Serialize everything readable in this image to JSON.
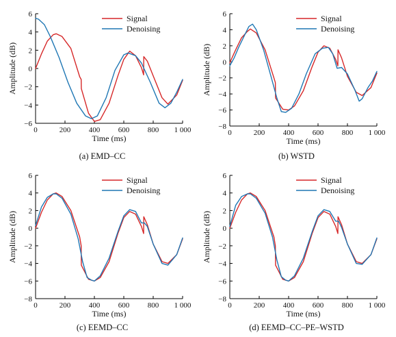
{
  "panel_order": [
    "a",
    "b",
    "c",
    "d"
  ],
  "chart_data": [
    {
      "id": "a",
      "type": "line",
      "caption": "(a) EMD–CC",
      "xlabel": "Time (ms)",
      "ylabel": "Amplitude (dB)",
      "xlim": [
        0,
        1000
      ],
      "ylim": [
        -6,
        6
      ],
      "xticks": [
        0,
        200,
        400,
        600,
        800,
        1000
      ],
      "xtick_labels": [
        "0",
        "200",
        "400",
        "600",
        "800",
        "1 000"
      ],
      "yticks": [
        -6,
        -4,
        -2,
        0,
        2,
        4,
        6
      ],
      "ytick_labels": [
        "−6",
        "−4",
        "−2",
        "0",
        "2",
        "4",
        "6"
      ],
      "grid": false,
      "legend_position": "top-right",
      "series": [
        {
          "name": "Signal",
          "color": "#d62728",
          "x": [
            0,
            40,
            80,
            120,
            140,
            180,
            240,
            300,
            310,
            311,
            360,
            400,
            440,
            500,
            560,
            600,
            640,
            680,
            720,
            735,
            736,
            760,
            800,
            860,
            900,
            960,
            1000
          ],
          "y": [
            0,
            1.6,
            3.0,
            3.7,
            3.8,
            3.5,
            2.2,
            -0.9,
            -1.2,
            -2.2,
            -4.9,
            -5.8,
            -5.6,
            -3.8,
            -0.8,
            1.0,
            1.9,
            1.4,
            0.1,
            -0.7,
            1.3,
            0.8,
            -0.8,
            -3.2,
            -3.9,
            -2.9,
            -1.3
          ]
        },
        {
          "name": "Denoising",
          "color": "#1f77b4",
          "x": [
            0,
            20,
            60,
            100,
            160,
            220,
            280,
            340,
            380,
            420,
            480,
            540,
            600,
            630,
            680,
            720,
            780,
            840,
            880,
            920,
            960,
            1000
          ],
          "y": [
            5.5,
            5.4,
            4.8,
            3.5,
            1.2,
            -1.5,
            -3.8,
            -5.2,
            -5.5,
            -5.2,
            -3.2,
            -0.2,
            1.5,
            1.7,
            1.4,
            0.6,
            -1.5,
            -3.8,
            -4.3,
            -3.8,
            -2.6,
            -1.2
          ]
        }
      ]
    },
    {
      "id": "b",
      "type": "line",
      "caption": "(b) WSTD",
      "xlabel": "Time (ms)",
      "ylabel": "Amplitude (dB)",
      "xlim": [
        0,
        1000
      ],
      "ylim": [
        -8,
        6
      ],
      "xticks": [
        0,
        200,
        400,
        600,
        800,
        1000
      ],
      "xtick_labels": [
        "0",
        "200",
        "400",
        "600",
        "800",
        "1 000"
      ],
      "yticks": [
        -8,
        -6,
        -4,
        -2,
        0,
        2,
        4,
        6
      ],
      "ytick_labels": [
        "−8",
        "−6",
        "−4",
        "−2",
        "0",
        "2",
        "4",
        "6"
      ],
      "grid": false,
      "legend_position": "top-right",
      "series": [
        {
          "name": "Signal",
          "color": "#d62728",
          "x": [
            0,
            40,
            80,
            120,
            140,
            180,
            240,
            300,
            310,
            311,
            360,
            400,
            440,
            500,
            560,
            600,
            640,
            680,
            720,
            735,
            736,
            760,
            800,
            860,
            900,
            960,
            1000
          ],
          "y": [
            -0.1,
            1.5,
            3.0,
            3.8,
            4.1,
            3.6,
            1.5,
            -2.0,
            -2.6,
            -4.5,
            -5.9,
            -6.0,
            -5.5,
            -3.6,
            -0.6,
            1.2,
            2.0,
            1.7,
            0.3,
            -0.5,
            1.5,
            0.5,
            -1.8,
            -3.8,
            -4.2,
            -3.2,
            -1.4
          ]
        },
        {
          "name": "Denoising",
          "color": "#1f77b4",
          "x": [
            0,
            30,
            60,
            100,
            130,
            155,
            180,
            230,
            280,
            320,
            350,
            380,
            420,
            470,
            520,
            580,
            630,
            670,
            700,
            730,
            760,
            800,
            850,
            880,
            900,
            940,
            970,
            1000
          ],
          "y": [
            -0.5,
            0.5,
            1.8,
            3.3,
            4.4,
            4.7,
            4.0,
            1.5,
            -1.8,
            -4.5,
            -6.2,
            -6.3,
            -5.8,
            -4.0,
            -1.5,
            1.0,
            1.7,
            1.8,
            1.0,
            -0.8,
            -0.7,
            -1.5,
            -3.5,
            -4.9,
            -4.6,
            -3.2,
            -2.4,
            -1.2
          ]
        }
      ]
    },
    {
      "id": "c",
      "type": "line",
      "caption": "(c) EEMD–CC",
      "xlabel": "Time (ms)",
      "ylabel": "Amplitude (dB)",
      "xlim": [
        0,
        1000
      ],
      "ylim": [
        -8,
        6
      ],
      "xticks": [
        0,
        200,
        400,
        600,
        800,
        1000
      ],
      "xtick_labels": [
        "0",
        "200",
        "400",
        "600",
        "800",
        "1 000"
      ],
      "yticks": [
        -8,
        -6,
        -4,
        -2,
        0,
        2,
        4,
        6
      ],
      "ytick_labels": [
        "−8",
        "−6",
        "−4",
        "−2",
        "0",
        "2",
        "4",
        "6"
      ],
      "grid": false,
      "legend_position": "top-right",
      "series": [
        {
          "name": "Signal",
          "color": "#d62728",
          "x": [
            0,
            40,
            80,
            120,
            140,
            180,
            240,
            300,
            310,
            311,
            360,
            400,
            440,
            500,
            560,
            600,
            640,
            680,
            720,
            735,
            736,
            760,
            800,
            860,
            900,
            960,
            1000
          ],
          "y": [
            0,
            1.8,
            3.2,
            3.9,
            4.0,
            3.6,
            2.0,
            -1.0,
            -2.0,
            -4.2,
            -5.8,
            -6.0,
            -5.6,
            -3.8,
            -0.6,
            1.2,
            1.9,
            1.6,
            0.2,
            -0.6,
            1.3,
            0.4,
            -1.8,
            -3.8,
            -4.0,
            -3.0,
            -1.2
          ]
        },
        {
          "name": "Denoising",
          "color": "#1f77b4",
          "x": [
            0,
            40,
            80,
            120,
            140,
            180,
            240,
            290,
            320,
            350,
            380,
            400,
            440,
            500,
            560,
            600,
            640,
            680,
            720,
            740,
            760,
            800,
            860,
            900,
            960,
            1000
          ],
          "y": [
            0.3,
            2.4,
            3.5,
            3.9,
            3.9,
            3.4,
            1.6,
            -1.2,
            -3.8,
            -5.6,
            -5.9,
            -6.0,
            -5.4,
            -3.4,
            -0.4,
            1.4,
            2.1,
            1.9,
            0.6,
            0.6,
            0.2,
            -1.8,
            -4.0,
            -4.2,
            -3.0,
            -1.1
          ]
        }
      ]
    },
    {
      "id": "d",
      "type": "line",
      "caption": "(d) EEMD–CC–PE–WSTD",
      "xlabel": "Time (ms)",
      "ylabel": "Amplitude (dB)",
      "xlim": [
        0,
        1000
      ],
      "ylim": [
        -8,
        6
      ],
      "xticks": [
        0,
        200,
        400,
        600,
        800,
        1000
      ],
      "xtick_labels": [
        "0",
        "200",
        "400",
        "600",
        "800",
        "1 000"
      ],
      "yticks": [
        -8,
        -6,
        -4,
        -2,
        0,
        2,
        4,
        6
      ],
      "ytick_labels": [
        "−8",
        "−6",
        "−4",
        "−2",
        "0",
        "2",
        "4",
        "6"
      ],
      "grid": false,
      "legend_position": "top-right",
      "series": [
        {
          "name": "Signal",
          "color": "#d62728",
          "x": [
            0,
            40,
            80,
            120,
            140,
            180,
            240,
            300,
            310,
            311,
            360,
            400,
            440,
            500,
            560,
            600,
            640,
            680,
            720,
            735,
            736,
            760,
            800,
            860,
            900,
            960,
            1000
          ],
          "y": [
            0,
            1.8,
            3.2,
            3.9,
            4.0,
            3.6,
            2.0,
            -1.0,
            -2.0,
            -4.2,
            -5.8,
            -6.0,
            -5.6,
            -3.8,
            -0.6,
            1.2,
            1.9,
            1.6,
            0.2,
            -0.6,
            1.3,
            0.4,
            -1.8,
            -3.8,
            -4.0,
            -3.0,
            -1.2
          ]
        },
        {
          "name": "Denoising",
          "color": "#1f77b4",
          "x": [
            0,
            40,
            80,
            120,
            140,
            180,
            240,
            290,
            320,
            350,
            380,
            400,
            440,
            500,
            560,
            600,
            640,
            680,
            720,
            740,
            760,
            800,
            860,
            900,
            960,
            1000
          ],
          "y": [
            0.2,
            2.6,
            3.6,
            3.9,
            3.9,
            3.4,
            1.7,
            -1.0,
            -3.6,
            -5.5,
            -5.9,
            -6.0,
            -5.4,
            -3.4,
            -0.4,
            1.4,
            2.1,
            1.9,
            0.8,
            0.8,
            0.1,
            -1.8,
            -4.0,
            -4.1,
            -3.0,
            -1.1
          ]
        }
      ]
    }
  ]
}
